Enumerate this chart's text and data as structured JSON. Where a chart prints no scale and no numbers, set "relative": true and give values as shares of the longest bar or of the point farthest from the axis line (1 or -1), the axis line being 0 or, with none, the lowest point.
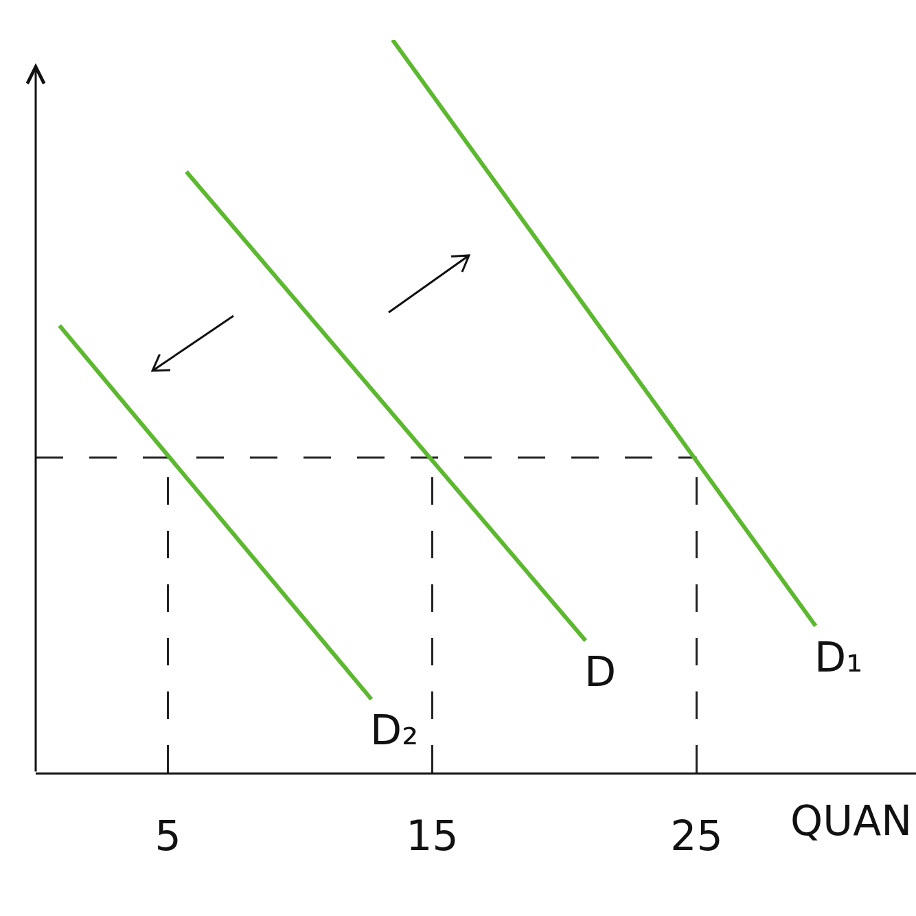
{
  "chart_data": {
    "type": "line",
    "xlabel": "QUAN",
    "xlim": [
      0,
      33.3
    ],
    "xticks": [
      5,
      15,
      25
    ],
    "relative": true,
    "series": [
      {
        "name": "D₂",
        "color": "#5cb82e",
        "x": [
          0.9,
          12.7
        ],
        "values": [
          0.61,
          0.1
        ]
      },
      {
        "name": "D",
        "color": "#5cb82e",
        "x": [
          5.7,
          20.8
        ],
        "values": [
          0.82,
          0.18
        ]
      },
      {
        "name": "D₁",
        "color": "#5cb82e",
        "x": [
          13.5,
          29.5
        ],
        "values": [
          1,
          0.2
        ]
      }
    ],
    "ref_lines": [
      {
        "axis": "y",
        "value": 0.43,
        "color": "#222222",
        "line_style": "dashed"
      },
      {
        "axis": "x",
        "value": 5,
        "color": "#222222",
        "line_style": "dashed"
      },
      {
        "axis": "x",
        "value": 15,
        "color": "#222222",
        "line_style": "dashed"
      },
      {
        "axis": "x",
        "value": 25,
        "color": "#222222",
        "line_style": "dashed"
      }
    ]
  }
}
